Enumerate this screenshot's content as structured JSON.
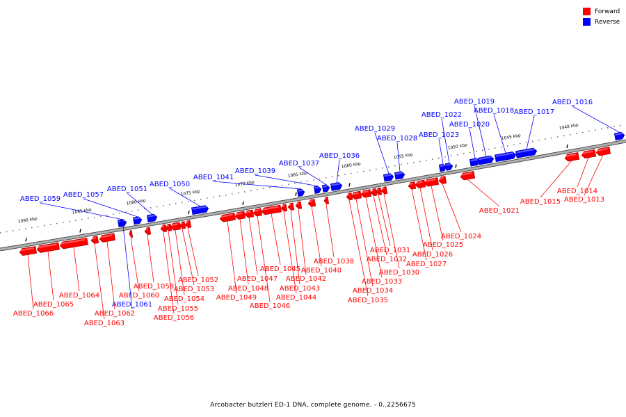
{
  "caption": "Arcobacter butzleri ED-1 DNA, complete genome. - 0..2256675",
  "legend": [
    {
      "label": "Forward",
      "color": "#ff0000"
    },
    {
      "label": "Reverse",
      "color": "#0000ff"
    }
  ],
  "colors": {
    "forward": "#ff0000",
    "reverse": "#0000ff",
    "backbone": "#808080"
  },
  "ticks": [
    {
      "kbp": 1040,
      "label": "1040 kbp"
    },
    {
      "kbp": 1045,
      "label": "1045 kbp"
    },
    {
      "kbp": 1050,
      "label": "1050 kbp"
    },
    {
      "kbp": 1055,
      "label": "1055 kbp"
    },
    {
      "kbp": 1060,
      "label": "1060 kbp"
    },
    {
      "kbp": 1065,
      "label": "1065 kbp"
    },
    {
      "kbp": 1070,
      "label": "1070 kbp"
    },
    {
      "kbp": 1075,
      "label": "1075 kbp"
    },
    {
      "kbp": 1080,
      "label": "1080 kbp"
    },
    {
      "kbp": 1085,
      "label": "1085 kbp"
    },
    {
      "kbp": 1090,
      "label": "1090 kbp"
    }
  ],
  "genes": [
    {
      "label": "ABED_1013",
      "strand": "forward"
    },
    {
      "label": "ABED_1014",
      "strand": "forward"
    },
    {
      "label": "ABED_1015",
      "strand": "forward"
    },
    {
      "label": "ABED_1016",
      "strand": "reverse"
    },
    {
      "label": "ABED_1017",
      "strand": "reverse"
    },
    {
      "label": "ABED_1018",
      "strand": "reverse"
    },
    {
      "label": "ABED_1019",
      "strand": "reverse"
    },
    {
      "label": "ABED_1020",
      "strand": "reverse"
    },
    {
      "label": "ABED_1021",
      "strand": "forward"
    },
    {
      "label": "ABED_1022",
      "strand": "reverse"
    },
    {
      "label": "ABED_1023",
      "strand": "reverse"
    },
    {
      "label": "ABED_1024",
      "strand": "forward"
    },
    {
      "label": "ABED_1025",
      "strand": "forward"
    },
    {
      "label": "ABED_1026",
      "strand": "forward"
    },
    {
      "label": "ABED_1027",
      "strand": "forward"
    },
    {
      "label": "ABED_1028",
      "strand": "reverse"
    },
    {
      "label": "ABED_1029",
      "strand": "reverse"
    },
    {
      "label": "ABED_1030",
      "strand": "forward"
    },
    {
      "label": "ABED_1031",
      "strand": "forward"
    },
    {
      "label": "ABED_1032",
      "strand": "forward"
    },
    {
      "label": "ABED_1033",
      "strand": "forward"
    },
    {
      "label": "ABED_1034",
      "strand": "forward"
    },
    {
      "label": "ABED_1035",
      "strand": "forward"
    },
    {
      "label": "ABED_1036",
      "strand": "reverse"
    },
    {
      "label": "ABED_1037",
      "strand": "reverse"
    },
    {
      "label": "ABED_1038",
      "strand": "forward"
    },
    {
      "label": "ABED_1039",
      "strand": "reverse"
    },
    {
      "label": "ABED_1040",
      "strand": "forward"
    },
    {
      "label": "ABED_1041",
      "strand": "reverse"
    },
    {
      "label": "ABED_1042",
      "strand": "forward"
    },
    {
      "label": "ABED_1043",
      "strand": "forward"
    },
    {
      "label": "ABED_1044",
      "strand": "forward"
    },
    {
      "label": "ABED_1045",
      "strand": "forward"
    },
    {
      "label": "ABED_1046",
      "strand": "forward"
    },
    {
      "label": "ABED_1047",
      "strand": "forward"
    },
    {
      "label": "ABED_1048",
      "strand": "forward"
    },
    {
      "label": "ABED_1049",
      "strand": "forward"
    },
    {
      "label": "ABED_1050",
      "strand": "reverse"
    },
    {
      "label": "ABED_1051",
      "strand": "reverse"
    },
    {
      "label": "ABED_1052",
      "strand": "forward"
    },
    {
      "label": "ABED_1053",
      "strand": "forward"
    },
    {
      "label": "ABED_1054",
      "strand": "forward"
    },
    {
      "label": "ABED_1055",
      "strand": "forward"
    },
    {
      "label": "ABED_1056",
      "strand": "forward"
    },
    {
      "label": "ABED_1057",
      "strand": "reverse"
    },
    {
      "label": "ABED_1058",
      "strand": "forward"
    },
    {
      "label": "ABED_1059",
      "strand": "reverse"
    },
    {
      "label": "ABED_1060",
      "strand": "forward"
    },
    {
      "label": "ABED_1061",
      "strand": "reverse"
    },
    {
      "label": "ABED_1062",
      "strand": "forward"
    },
    {
      "label": "ABED_1063",
      "strand": "forward"
    },
    {
      "label": "ABED_1064",
      "strand": "forward"
    },
    {
      "label": "ABED_1065",
      "strand": "forward"
    },
    {
      "label": "ABED_1066",
      "strand": "forward"
    }
  ]
}
